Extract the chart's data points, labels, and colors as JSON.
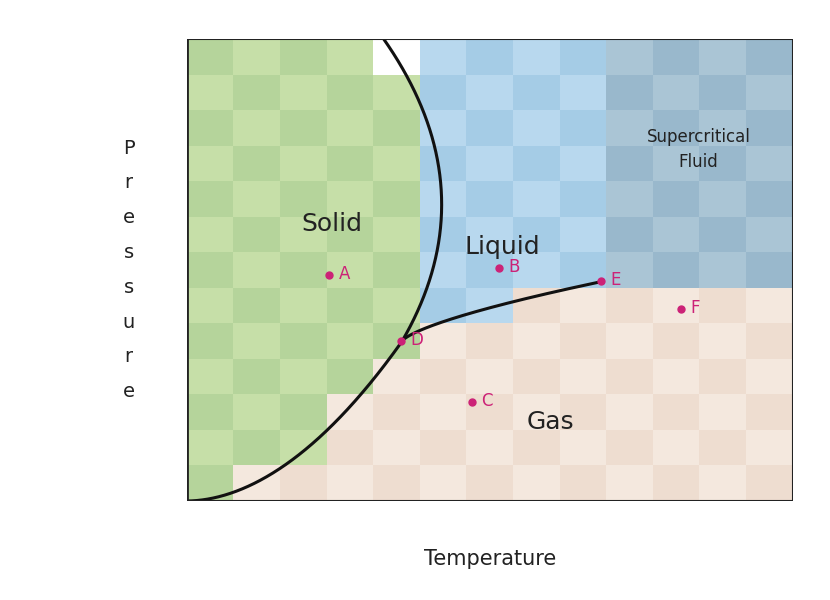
{
  "xlabel": "Temperature",
  "ylabel_letters": [
    "P",
    "r",
    "e",
    "s",
    "s",
    "u",
    "r",
    "e"
  ],
  "solid_color1": "#b5d49b",
  "solid_color2": "#c6dfa8",
  "liquid_color1": "#a5cce6",
  "liquid_color2": "#b8d8ee",
  "gas_color1": "#eeddd0",
  "gas_color2": "#f4e8de",
  "supercritical_color1": "#99b8cc",
  "supercritical_color2": "#aac5d5",
  "line_color": "#111111",
  "line_width": 2.2,
  "point_color": "#cc2277",
  "axes_color": "#222222",
  "label_color": "#222222",
  "label_fontsize": 18,
  "supercritical_fontsize": 12,
  "xlabel_fontsize": 15,
  "ylabel_fontsize": 14,
  "point_fontsize": 12,
  "point_size": 5,
  "triple_point": [
    0.355,
    0.345
  ],
  "critical_point": [
    0.685,
    0.475
  ],
  "points_ax": {
    "A": [
      0.235,
      0.49
    ],
    "B": [
      0.515,
      0.505
    ],
    "C": [
      0.47,
      0.215
    ],
    "D": [
      0.353,
      0.347
    ],
    "E": [
      0.683,
      0.477
    ],
    "F": [
      0.815,
      0.415
    ]
  },
  "n_checks": 13
}
